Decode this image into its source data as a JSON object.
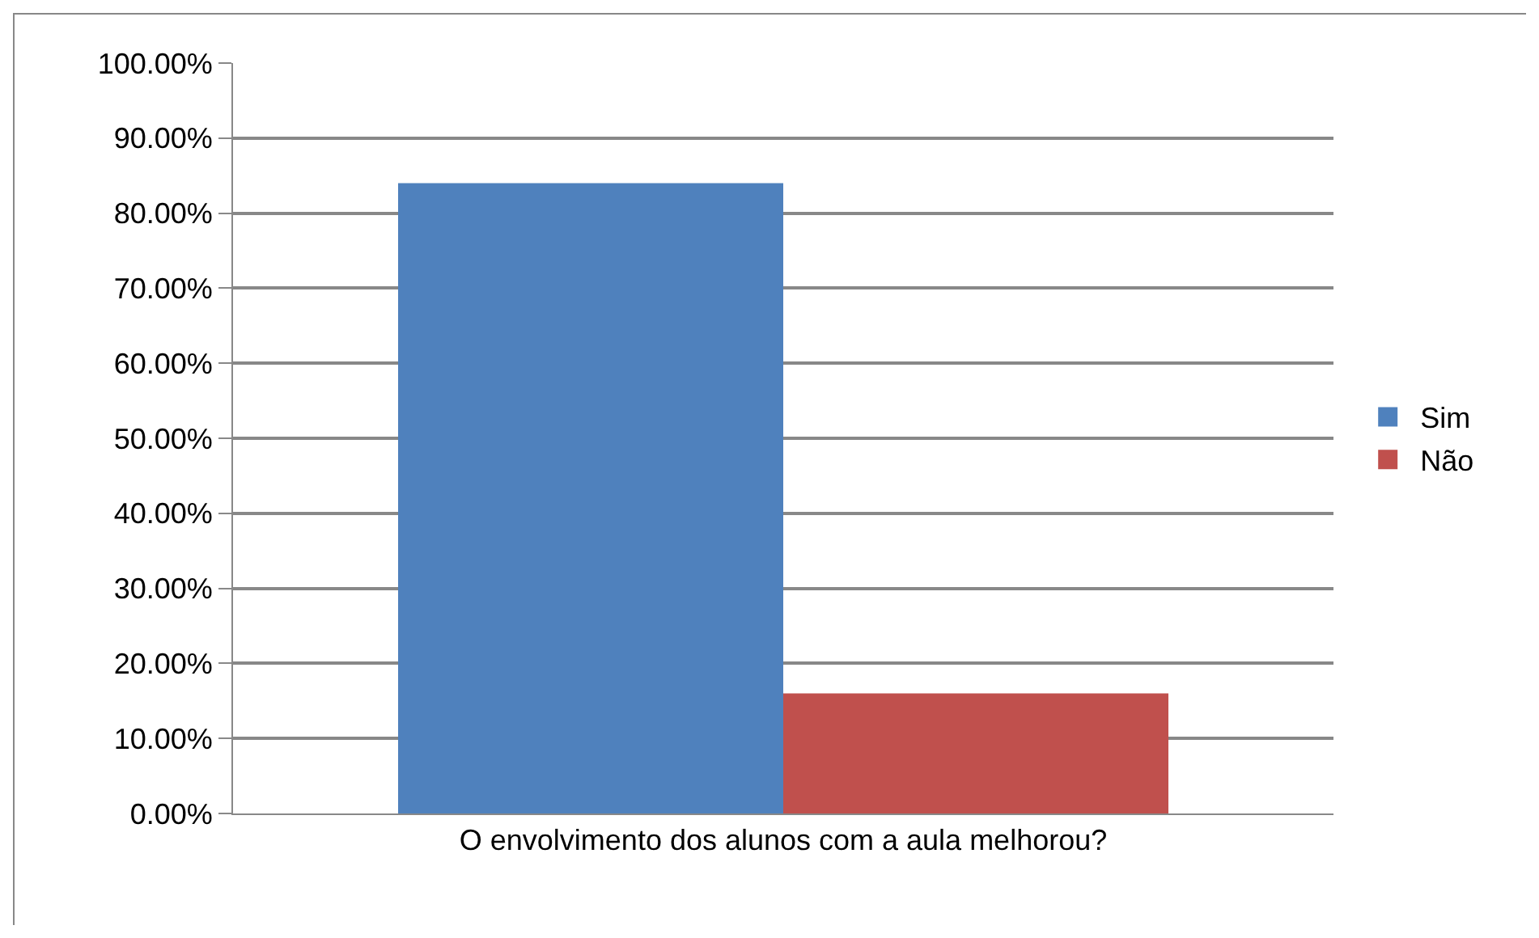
{
  "chart_data": {
    "type": "bar",
    "categories": [
      "O envolvimento dos alunos com a aula melhorou?"
    ],
    "series": [
      {
        "name": "Sim",
        "color": "#4f81bd",
        "values": [
          84
        ]
      },
      {
        "name": "Não",
        "color": "#c0504d",
        "values": [
          16
        ]
      }
    ],
    "ylim": [
      0,
      100
    ],
    "yticks": [
      {
        "value": 0,
        "label": "0.00%"
      },
      {
        "value": 10,
        "label": "10.00%"
      },
      {
        "value": 20,
        "label": "20.00%"
      },
      {
        "value": 30,
        "label": "30.00%"
      },
      {
        "value": 40,
        "label": "40.00%"
      },
      {
        "value": 50,
        "label": "50.00%"
      },
      {
        "value": 60,
        "label": "60.00%"
      },
      {
        "value": 70,
        "label": "70.00%"
      },
      {
        "value": 80,
        "label": "80.00%"
      },
      {
        "value": 90,
        "label": "90.00%"
      },
      {
        "value": 100,
        "label": "100.00%"
      }
    ],
    "grid": "y",
    "legend": "right"
  }
}
